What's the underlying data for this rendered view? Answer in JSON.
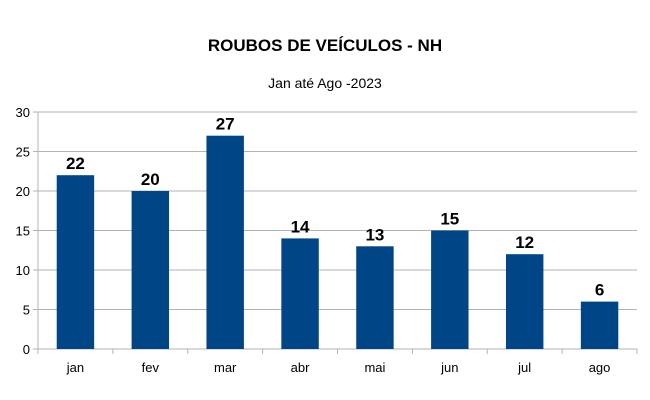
{
  "chart_data": {
    "type": "bar",
    "title": "ROUBOS DE VEÍCULOS - NH",
    "subtitle": "Jan até Ago -2023",
    "categories": [
      "jan",
      "fev",
      "mar",
      "abr",
      "mai",
      "jun",
      "jul",
      "ago"
    ],
    "series": [
      {
        "values": [
          22,
          20,
          27,
          14,
          13,
          15,
          12,
          6
        ]
      }
    ],
    "ylim": [
      0,
      30
    ],
    "yticks": [
      0,
      5,
      10,
      15,
      20,
      25,
      30
    ],
    "grid": true,
    "legend": "none",
    "colors": {
      "bar": "#004586",
      "grid": "#b3b3b3",
      "axis": "#b3b3b3"
    }
  }
}
